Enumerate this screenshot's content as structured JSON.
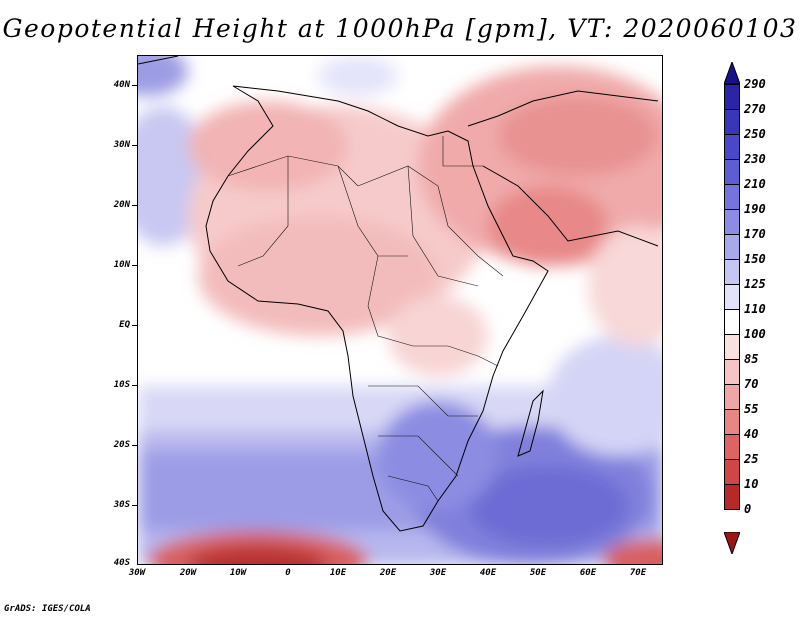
{
  "title": "Geopotential Height at 1000hPa [gpm], VT: 2020060103",
  "credit": "GrADS: IGES/COLA",
  "lat_labels": [
    "40N",
    "30N",
    "20N",
    "10N",
    "EQ",
    "10S",
    "20S",
    "30S",
    "40S"
  ],
  "lon_labels": [
    "30W",
    "20W",
    "10W",
    "0",
    "10E",
    "20E",
    "30E",
    "40E",
    "50E",
    "60E",
    "70E"
  ],
  "colorbar": {
    "labels": [
      "290",
      "270",
      "250",
      "230",
      "210",
      "190",
      "170",
      "150",
      "125",
      "110",
      "100",
      "85",
      "70",
      "55",
      "40",
      "25",
      "10",
      "0"
    ],
    "colors": [
      "#1a0f8c",
      "#2b24a6",
      "#3a36b8",
      "#4a48c8",
      "#5e5ed4",
      "#7474dc",
      "#8c8ce4",
      "#a8a8ec",
      "#c6c6f4",
      "#e2e2fa",
      "#ffffff",
      "#fbe0e0",
      "#f6c4c4",
      "#f0a6a6",
      "#e88686",
      "#de6464",
      "#d04646",
      "#b82828",
      "#9c1414"
    ]
  }
}
